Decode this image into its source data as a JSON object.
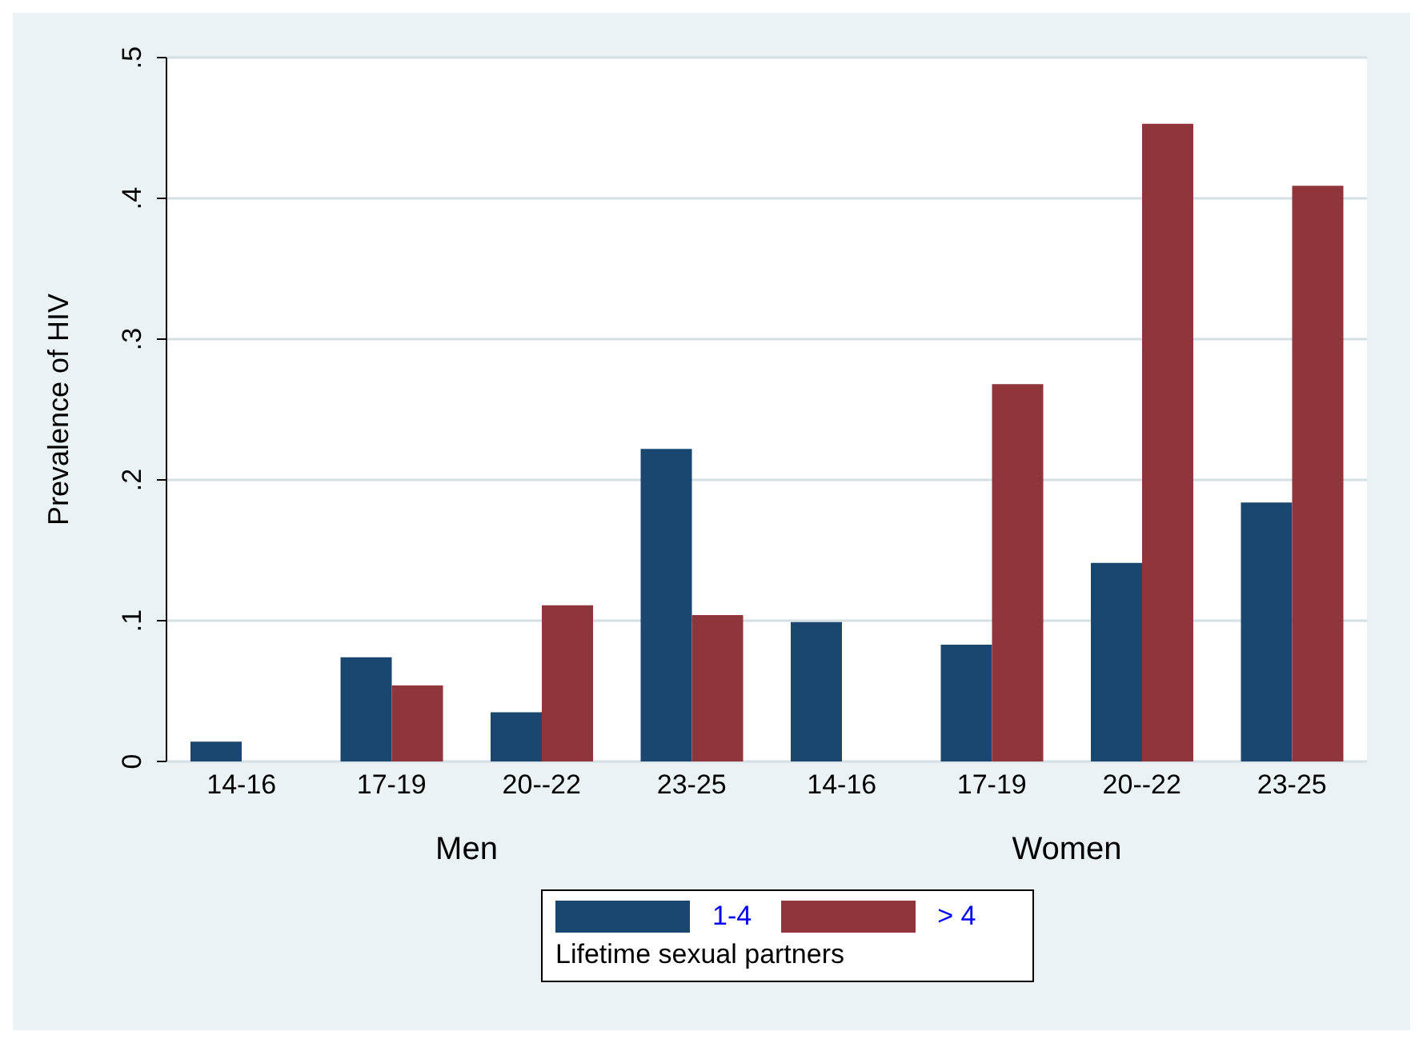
{
  "chart_data": {
    "type": "bar",
    "ylabel": "Prevalence of HIV",
    "categories": [
      "14-16",
      "17-19",
      "20--22",
      "23-25",
      "14-16",
      "17-19",
      "20--22",
      "23-25"
    ],
    "series": [
      {
        "name": "1-4",
        "color": "#1a476f",
        "values": [
          0.014,
          0.074,
          0.035,
          0.222,
          0.099,
          0.083,
          0.141,
          0.184
        ]
      },
      {
        "name": "> 4",
        "color": "#90353b",
        "values": [
          0,
          0.054,
          0.111,
          0.104,
          0,
          0.268,
          0.453,
          0.409
        ]
      }
    ],
    "annotations": [
      "Men",
      "Women"
    ],
    "ylim": [
      0,
      0.5
    ],
    "yticks": [
      0,
      {
        "value": 0.1,
        "label": ".1"
      },
      {
        "value": 0.2,
        "label": ".2"
      },
      {
        "value": 0.3,
        "label": ".3"
      },
      {
        "value": 0.4,
        "label": ".4"
      },
      {
        "value": 0.5,
        "label": ".5"
      }
    ],
    "grid": "y",
    "legend": "bottom",
    "legend_title": "Lifetime sexual partners"
  }
}
